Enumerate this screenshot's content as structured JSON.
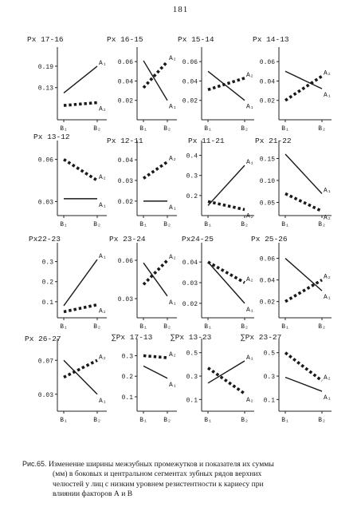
{
  "page_number": "181",
  "caption": {
    "label": "Рис.65.",
    "lines": [
      "Изменение ширины межзубных промежутков и показателя их суммы",
      "(мм) в боковых и центральном сегментах зубных рядов верхних",
      "челюстей у лиц с низким уровнем резистентности к кариесу при",
      "влиянии факторов А и В"
    ]
  },
  "chart_data": [
    {
      "type": "line",
      "title": "Px 17-16",
      "yticks": [
        0.13,
        0.19
      ],
      "ytick_labels": [
        "0.13",
        "0.19"
      ],
      "ylim": [
        0.04,
        0.23
      ],
      "categories": [
        "B₁",
        "B₂"
      ],
      "series": [
        {
          "name": "A₁",
          "values": [
            0.115,
            0.19
          ],
          "style": "solid"
        },
        {
          "name": "A₂",
          "values": [
            0.08,
            0.088
          ],
          "style": "dotted"
        }
      ]
    },
    {
      "type": "line",
      "title": "Px 16-15",
      "yticks": [
        0.02,
        0.04,
        0.06
      ],
      "ytick_labels": [
        "0.02",
        "0.04",
        "0.06"
      ],
      "ylim": [
        0.0,
        0.07
      ],
      "categories": [
        "B₁",
        "B₂"
      ],
      "series": [
        {
          "name": "A₁",
          "values": [
            0.061,
            0.02
          ],
          "style": "solid"
        },
        {
          "name": "A₂",
          "values": [
            0.033,
            0.06
          ],
          "style": "dotted"
        }
      ]
    },
    {
      "type": "line",
      "title": "Px 15-14",
      "yticks": [
        0.02,
        0.04,
        0.06
      ],
      "ytick_labels": [
        "0.02",
        "0.04",
        "0.06"
      ],
      "ylim": [
        0.0,
        0.07
      ],
      "categories": [
        "B₁",
        "B₂"
      ],
      "series": [
        {
          "name": "A₁",
          "values": [
            0.05,
            0.02
          ],
          "style": "solid"
        },
        {
          "name": "A₂",
          "values": [
            0.031,
            0.043
          ],
          "style": "dotted"
        }
      ]
    },
    {
      "type": "line",
      "title": "Px 14-13",
      "yticks": [
        0.02,
        0.04,
        0.06
      ],
      "ytick_labels": [
        "0.02",
        "0.04",
        "0.06"
      ],
      "ylim": [
        0.0,
        0.07
      ],
      "categories": [
        "B₁",
        "B₂"
      ],
      "series": [
        {
          "name": "A₁",
          "values": [
            0.05,
            0.032
          ],
          "style": "solid"
        },
        {
          "name": "A₂",
          "values": [
            0.02,
            0.045
          ],
          "style": "dotted"
        }
      ]
    },
    {
      "type": "line",
      "title": "Px 13-12",
      "yticks": [
        0.03,
        0.06
      ],
      "ytick_labels": [
        "0.03",
        "0.06"
      ],
      "ylim": [
        0.02,
        0.07
      ],
      "categories": [
        "B₁",
        "B₂"
      ],
      "series": [
        {
          "name": "A₁",
          "values": [
            0.032,
            0.032
          ],
          "style": "solid"
        },
        {
          "name": "A₂",
          "values": [
            0.06,
            0.045
          ],
          "style": "dotted"
        }
      ]
    },
    {
      "type": "line",
      "title": "Px 12-11",
      "yticks": [
        0.02,
        0.03,
        0.04
      ],
      "ytick_labels": [
        "0.02",
        "0.03",
        "0.04"
      ],
      "ylim": [
        0.013,
        0.047
      ],
      "categories": [
        "B₁",
        "B₂"
      ],
      "series": [
        {
          "name": "A₁",
          "values": [
            0.02,
            0.02
          ],
          "style": "solid"
        },
        {
          "name": "A₂",
          "values": [
            0.031,
            0.039
          ],
          "style": "dotted"
        }
      ]
    },
    {
      "type": "line",
      "title": "Px 11-21",
      "yticks": [
        0.2,
        0.3,
        0.4
      ],
      "ytick_labels": [
        "0.2",
        "0.3",
        "0.4"
      ],
      "ylim": [
        0.1,
        0.45
      ],
      "categories": [
        "B₁",
        "B₂"
      ],
      "series": [
        {
          "name": "A₁",
          "values": [
            0.15,
            0.35
          ],
          "style": "solid"
        },
        {
          "name": "A₂",
          "values": [
            0.17,
            0.13
          ],
          "style": "dotted"
        }
      ]
    },
    {
      "type": "line",
      "title": "Px 21-22",
      "yticks": [
        0.05,
        0.1,
        0.15
      ],
      "ytick_labels": [
        "0.05",
        "0.10",
        "0.15"
      ],
      "ylim": [
        0.02,
        0.18
      ],
      "categories": [
        "B₁",
        "B₂"
      ],
      "series": [
        {
          "name": "A₁",
          "values": [
            0.16,
            0.07
          ],
          "style": "solid"
        },
        {
          "name": "A₂",
          "values": [
            0.07,
            0.03
          ],
          "style": "dotted"
        }
      ]
    },
    {
      "type": "line",
      "title": "Px22-23",
      "yticks": [
        0.1,
        0.2,
        0.3
      ],
      "ytick_labels": [
        "0.1",
        "0.2",
        "0.3"
      ],
      "ylim": [
        0.02,
        0.37
      ],
      "categories": [
        "B₁",
        "B₂"
      ],
      "series": [
        {
          "name": "A₁",
          "values": [
            0.08,
            0.31
          ],
          "style": "solid"
        },
        {
          "name": "A₂",
          "values": [
            0.05,
            0.085
          ],
          "style": "dotted"
        }
      ]
    },
    {
      "type": "line",
      "title": "Px 23-24",
      "yticks": [
        0.03,
        0.06
      ],
      "ytick_labels": [
        "0.03",
        "0.06"
      ],
      "ylim": [
        0.015,
        0.07
      ],
      "categories": [
        "B₁",
        "B₂"
      ],
      "series": [
        {
          "name": "A₁",
          "values": [
            0.058,
            0.032
          ],
          "style": "solid"
        },
        {
          "name": "A₂",
          "values": [
            0.041,
            0.06
          ],
          "style": "dotted"
        }
      ]
    },
    {
      "type": "line",
      "title": "Px24-25",
      "yticks": [
        0.02,
        0.03,
        0.04
      ],
      "ytick_labels": [
        "0.02",
        "0.03",
        "0.04"
      ],
      "ylim": [
        0.013,
        0.047
      ],
      "categories": [
        "B₁",
        "B₂"
      ],
      "series": [
        {
          "name": "A₁",
          "values": [
            0.04,
            0.02
          ],
          "style": "solid"
        },
        {
          "name": "A₂",
          "values": [
            0.04,
            0.03
          ],
          "style": "dotted"
        }
      ]
    },
    {
      "type": "line",
      "title": "Px 25-26",
      "yticks": [
        0.02,
        0.04,
        0.06
      ],
      "ytick_labels": [
        "0.02",
        "0.04",
        "0.06"
      ],
      "ylim": [
        0.005,
        0.07
      ],
      "categories": [
        "B₁",
        "B₂"
      ],
      "series": [
        {
          "name": "A₁",
          "values": [
            0.06,
            0.03
          ],
          "style": "solid"
        },
        {
          "name": "A₂",
          "values": [
            0.02,
            0.04
          ],
          "style": "dotted"
        }
      ]
    },
    {
      "type": "line",
      "title": "Px 26-27",
      "yticks": [
        0.03,
        0.07
      ],
      "ytick_labels": [
        "0.03",
        "0.07"
      ],
      "ylim": [
        0.01,
        0.09
      ],
      "categories": [
        "B₁",
        "B₂"
      ],
      "series": [
        {
          "name": "A₁",
          "values": [
            0.07,
            0.03
          ],
          "style": "solid"
        },
        {
          "name": "A₂",
          "values": [
            0.05,
            0.07
          ],
          "style": "dotted"
        }
      ]
    },
    {
      "type": "line",
      "title": "∑Px 17-13",
      "yticks": [
        0.1,
        0.2,
        0.3
      ],
      "ytick_labels": [
        "0.1",
        "0.2",
        "0.3"
      ],
      "ylim": [
        0.03,
        0.36
      ],
      "categories": [
        "B₁",
        "B₂"
      ],
      "series": [
        {
          "name": "A₁",
          "values": [
            0.25,
            0.19
          ],
          "style": "solid"
        },
        {
          "name": "A₂",
          "values": [
            0.3,
            0.29
          ],
          "style": "dotted"
        }
      ]
    },
    {
      "type": "line",
      "title": "∑Px 13-23",
      "yticks": [
        0.1,
        0.3,
        0.5
      ],
      "ytick_labels": [
        "0.1",
        "0.3",
        "0.5"
      ],
      "ylim": [
        0.0,
        0.58
      ],
      "categories": [
        "B₁",
        "B₂"
      ],
      "series": [
        {
          "name": "A₁",
          "values": [
            0.24,
            0.43
          ],
          "style": "solid"
        },
        {
          "name": "A₂",
          "values": [
            0.37,
            0.15
          ],
          "style": "dotted"
        }
      ]
    },
    {
      "type": "line",
      "title": "∑Px 23-27",
      "yticks": [
        0.1,
        0.3,
        0.5
      ],
      "ytick_labels": [
        "0.1",
        "0.3",
        "0.5"
      ],
      "ylim": [
        0.0,
        0.58
      ],
      "categories": [
        "B₁",
        "B₂"
      ],
      "series": [
        {
          "name": "A₁",
          "values": [
            0.29,
            0.17
          ],
          "style": "solid"
        },
        {
          "name": "A₂",
          "values": [
            0.5,
            0.26
          ],
          "style": "dotted"
        }
      ]
    }
  ]
}
